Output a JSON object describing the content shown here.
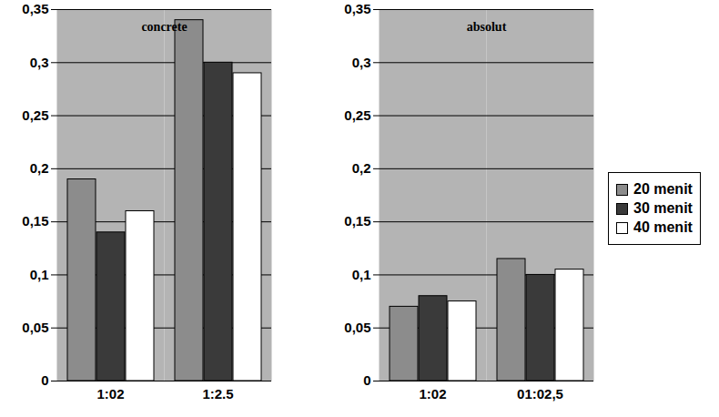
{
  "chart_data": {
    "type": "bar",
    "categories": [
      "1:02",
      "1:2.5",
      null,
      "1:02",
      "01:02,5"
    ],
    "series": [
      {
        "name": "20 menit",
        "color": "#8c8c8c",
        "values": [
          0.19,
          0.34,
          null,
          0.07,
          0.115
        ]
      },
      {
        "name": "30 menit",
        "color": "#3a3a3a",
        "values": [
          0.14,
          0.3,
          null,
          0.08,
          0.1
        ]
      },
      {
        "name": "40 menit",
        "color": "#ffffff",
        "values": [
          0.16,
          0.29,
          null,
          0.075,
          0.105
        ]
      }
    ],
    "annotations": [
      "concrete",
      "absolut"
    ],
    "ylim": [
      0,
      0.35
    ],
    "yticks": [
      0,
      {
        "value": 0.05,
        "label": "0,05"
      },
      {
        "value": 0.1,
        "label": "0,1"
      },
      {
        "value": 0.15,
        "label": "0,15"
      },
      {
        "value": 0.2,
        "label": "0,2"
      },
      {
        "value": 0.25,
        "label": "0,25"
      },
      {
        "value": 0.3,
        "label": "0,3"
      },
      {
        "value": 0.35,
        "label": "0,35"
      }
    ],
    "grid": true,
    "legend": "right"
  }
}
